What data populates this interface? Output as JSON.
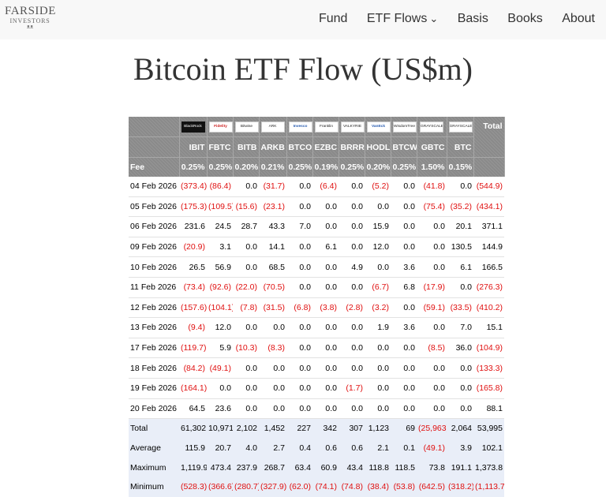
{
  "nav": {
    "logo_main": "FARSIDE",
    "logo_sub": "INVESTORS",
    "logo_mark": "ᴥᴥ",
    "items": [
      {
        "label": "Fund"
      },
      {
        "label": "ETF Flows",
        "dropdown": true
      },
      {
        "label": "Basis"
      },
      {
        "label": "Books"
      },
      {
        "label": "About"
      }
    ]
  },
  "page": {
    "title": "Bitcoin ETF Flow (US$m)"
  },
  "table": {
    "issuer_logos": [
      "BlackRock",
      "Fidelity",
      "Bitwise",
      "ARK",
      "Invesco",
      "Franklin",
      "VALKYRIE",
      "VanEck",
      "WisdomTree",
      "GRAYSCALE",
      "GRAYSCALE"
    ],
    "total_label": "Total",
    "tickers": [
      "IBIT",
      "FBTC",
      "BITB",
      "ARKB",
      "BTCO",
      "EZBC",
      "BRRR",
      "HODL",
      "BTCW",
      "GBTC",
      "BTC"
    ],
    "fee_label": "Fee",
    "fees": [
      "0.25%",
      "0.25%",
      "0.20%",
      "0.21%",
      "0.25%",
      "0.19%",
      "0.25%",
      "0.20%",
      "0.25%",
      "1.50%",
      "0.15%"
    ],
    "rows": [
      {
        "date": "04 Feb 2026",
        "values": [
          "(373.4)",
          "(86.4)",
          "0.0",
          "(31.7)",
          "0.0",
          "(6.4)",
          "0.0",
          "(5.2)",
          "0.0",
          "(41.8)",
          "0.0"
        ],
        "total": "(544.9)"
      },
      {
        "date": "05 Feb 2026",
        "values": [
          "(175.3)",
          "(109.5)",
          "(15.6)",
          "(23.1)",
          "0.0",
          "0.0",
          "0.0",
          "0.0",
          "0.0",
          "(75.4)",
          "(35.2)"
        ],
        "total": "(434.1)"
      },
      {
        "date": "06 Feb 2026",
        "values": [
          "231.6",
          "24.5",
          "28.7",
          "43.3",
          "7.0",
          "0.0",
          "0.0",
          "15.9",
          "0.0",
          "0.0",
          "20.1"
        ],
        "total": "371.1"
      },
      {
        "date": "09 Feb 2026",
        "values": [
          "(20.9)",
          "3.1",
          "0.0",
          "14.1",
          "0.0",
          "6.1",
          "0.0",
          "12.0",
          "0.0",
          "0.0",
          "130.5"
        ],
        "total": "144.9"
      },
      {
        "date": "10 Feb 2026",
        "values": [
          "26.5",
          "56.9",
          "0.0",
          "68.5",
          "0.0",
          "0.0",
          "4.9",
          "0.0",
          "3.6",
          "0.0",
          "6.1"
        ],
        "total": "166.5"
      },
      {
        "date": "11 Feb 2026",
        "values": [
          "(73.4)",
          "(92.6)",
          "(22.0)",
          "(70.5)",
          "0.0",
          "0.0",
          "0.0",
          "(6.7)",
          "6.8",
          "(17.9)",
          "0.0"
        ],
        "total": "(276.3)"
      },
      {
        "date": "12 Feb 2026",
        "values": [
          "(157.6)",
          "(104.1)",
          "(7.8)",
          "(31.5)",
          "(6.8)",
          "(3.8)",
          "(2.8)",
          "(3.2)",
          "0.0",
          "(59.1)",
          "(33.5)"
        ],
        "total": "(410.2)"
      },
      {
        "date": "13 Feb 2026",
        "values": [
          "(9.4)",
          "12.0",
          "0.0",
          "0.0",
          "0.0",
          "0.0",
          "0.0",
          "1.9",
          "3.6",
          "0.0",
          "7.0"
        ],
        "total": "15.1"
      },
      {
        "date": "17 Feb 2026",
        "values": [
          "(119.7)",
          "5.9",
          "(10.3)",
          "(8.3)",
          "0.0",
          "0.0",
          "0.0",
          "0.0",
          "0.0",
          "(8.5)",
          "36.0"
        ],
        "total": "(104.9)"
      },
      {
        "date": "18 Feb 2026",
        "values": [
          "(84.2)",
          "(49.1)",
          "0.0",
          "0.0",
          "0.0",
          "0.0",
          "0.0",
          "0.0",
          "0.0",
          "0.0",
          "0.0"
        ],
        "total": "(133.3)"
      },
      {
        "date": "19 Feb 2026",
        "values": [
          "(164.1)",
          "0.0",
          "0.0",
          "0.0",
          "0.0",
          "0.0",
          "(1.7)",
          "0.0",
          "0.0",
          "0.0",
          "0.0"
        ],
        "total": "(165.8)"
      },
      {
        "date": "20 Feb 2026",
        "values": [
          "64.5",
          "23.6",
          "0.0",
          "0.0",
          "0.0",
          "0.0",
          "0.0",
          "0.0",
          "0.0",
          "0.0",
          "0.0"
        ],
        "total": "88.1"
      }
    ],
    "summary": [
      {
        "label": "Total",
        "values": [
          "61,302",
          "10,971",
          "2,102",
          "1,452",
          "227",
          "342",
          "307",
          "1,123",
          "69",
          "(25,963)",
          "2,064"
        ],
        "total": "53,995"
      },
      {
        "label": "Average",
        "values": [
          "115.9",
          "20.7",
          "4.0",
          "2.7",
          "0.4",
          "0.6",
          "0.6",
          "2.1",
          "0.1",
          "(49.1)",
          "3.9"
        ],
        "total": "102.1"
      },
      {
        "label": "Maximum",
        "values": [
          "1,119.9",
          "473.4",
          "237.9",
          "268.7",
          "63.4",
          "60.9",
          "43.4",
          "118.8",
          "118.5",
          "73.8",
          "191.1"
        ],
        "total": "1,373.8"
      },
      {
        "label": "Minimum",
        "values": [
          "(528.3)",
          "(366.6)",
          "(280.7)",
          "(327.9)",
          "(62.0)",
          "(74.1)",
          "(74.8)",
          "(38.4)",
          "(53.8)",
          "(642.5)",
          "(318.2)"
        ],
        "total": "(1,113.7)"
      }
    ]
  },
  "colors": {
    "negative": "#e01010",
    "header_bg": "#8a8a8a",
    "summary_bg": "#e9eef8",
    "title": "#333333"
  }
}
